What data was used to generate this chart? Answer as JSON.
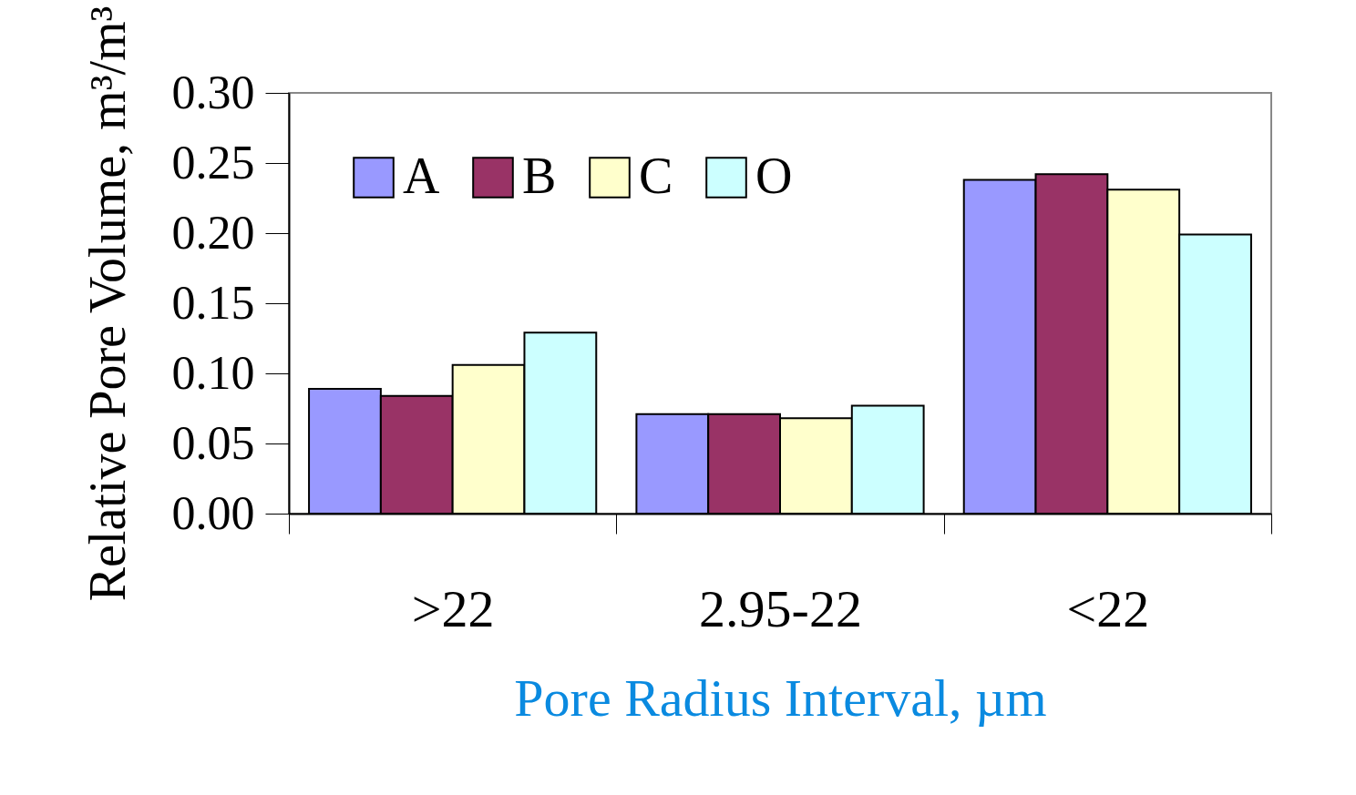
{
  "chart_data": {
    "type": "bar",
    "xlabel": "Pore Radius Interval, µm",
    "ylabel": "Relative Pore Volume, m³/m³",
    "categories": [
      ">22",
      "2.95-22",
      "<22"
    ],
    "series": [
      {
        "name": "A",
        "color": "#9999ff",
        "values": [
          0.089,
          0.071,
          0.238
        ]
      },
      {
        "name": "B",
        "color": "#993366",
        "values": [
          0.084,
          0.071,
          0.242
        ]
      },
      {
        "name": "C",
        "color": "#ffffcc",
        "values": [
          0.106,
          0.068,
          0.231
        ]
      },
      {
        "name": "O",
        "color": "#ccffff",
        "values": [
          0.129,
          0.077,
          0.199
        ]
      }
    ],
    "ylim": [
      0,
      0.3
    ],
    "yticks": [
      {
        "value": 0,
        "label": "0.00"
      },
      {
        "value": 0.05,
        "label": "0.05"
      },
      {
        "value": 0.1,
        "label": "0.10"
      },
      {
        "value": 0.15,
        "label": "0.15"
      },
      {
        "value": 0.2,
        "label": "0.20"
      },
      {
        "value": 0.25,
        "label": "0.25"
      },
      {
        "value": 0.3,
        "label": "0.30"
      }
    ],
    "legend": "top left",
    "grid": false
  }
}
